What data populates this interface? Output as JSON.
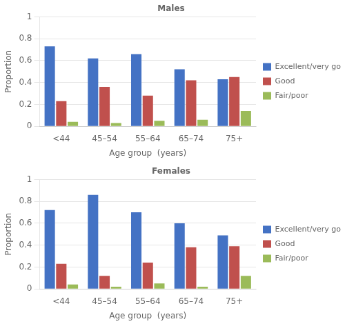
{
  "chart_data": [
    {
      "type": "bar",
      "title": "Males",
      "categories": [
        "<44",
        "45–54",
        "55–64",
        "65–74",
        "75+"
      ],
      "series": [
        {
          "name": "Excellent/very good",
          "color": "#4472C4",
          "values": [
            0.73,
            0.62,
            0.66,
            0.52,
            0.43
          ]
        },
        {
          "name": "Good",
          "color": "#C0504D",
          "values": [
            0.23,
            0.36,
            0.28,
            0.42,
            0.45
          ]
        },
        {
          "name": "Fair/poor",
          "color": "#9BBB59",
          "values": [
            0.04,
            0.03,
            0.05,
            0.06,
            0.14
          ]
        }
      ],
      "xlabel": "Age group  (years)",
      "ylabel": "Proportion",
      "ylim": [
        0,
        1
      ],
      "yticks": [
        0,
        0.2,
        0.4,
        0.6,
        0.8,
        1
      ],
      "grid": true,
      "legend": "right"
    },
    {
      "type": "bar",
      "title": "Females",
      "categories": [
        "<44",
        "45–54",
        "55–64",
        "65–74",
        "75+"
      ],
      "series": [
        {
          "name": "Excellent/very good",
          "color": "#4472C4",
          "values": [
            0.72,
            0.86,
            0.7,
            0.6,
            0.49
          ]
        },
        {
          "name": "Good",
          "color": "#C0504D",
          "values": [
            0.23,
            0.12,
            0.24,
            0.38,
            0.39
          ]
        },
        {
          "name": "Fair/poor",
          "color": "#9BBB59",
          "values": [
            0.04,
            0.02,
            0.05,
            0.02,
            0.12
          ]
        }
      ],
      "xlabel": "Age group  (years)",
      "ylabel": "Proportion",
      "ylim": [
        0,
        1
      ],
      "yticks": [
        0,
        0.2,
        0.4,
        0.6,
        0.8,
        1
      ],
      "grid": true,
      "legend": "right"
    }
  ]
}
